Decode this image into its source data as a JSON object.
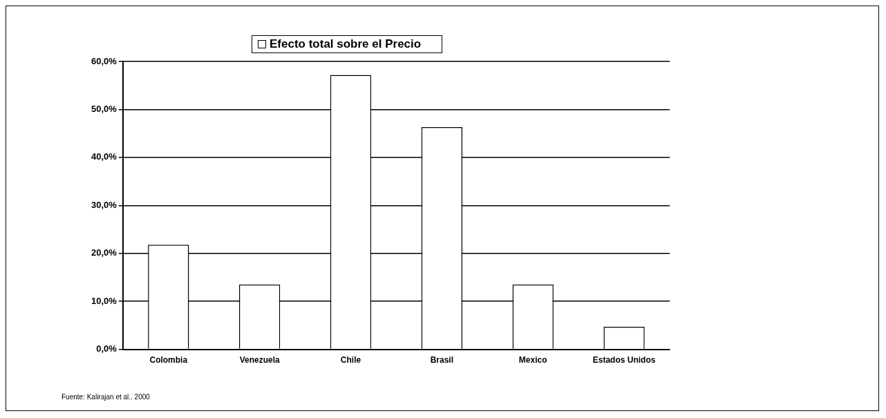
{
  "chart_data": {
    "type": "bar",
    "categories": [
      "Colombia",
      "Venezuela",
      "Chile",
      "Brasil",
      "Mexico",
      "Estados Unidos"
    ],
    "series": [
      {
        "name": "Efecto total sobre el Precio",
        "color": "#ffffff",
        "values": [
          21.8,
          13.5,
          57.2,
          46.3,
          13.5,
          4.7
        ]
      }
    ],
    "ylim": [
      0,
      60
    ],
    "yticks": [
      {
        "value": 0,
        "label": "0,0%"
      },
      {
        "value": 10,
        "label": "10,0%"
      },
      {
        "value": 20,
        "label": "20,0%"
      },
      {
        "value": 30,
        "label": "30,0%"
      },
      {
        "value": 40,
        "label": "40,0%"
      },
      {
        "value": 50,
        "label": "50,0%"
      },
      {
        "value": 60,
        "label": "60,0%"
      }
    ],
    "grid": "y",
    "legend": "top",
    "annotations": [
      "Fuente: Kalirajan et al.. 2000"
    ]
  }
}
